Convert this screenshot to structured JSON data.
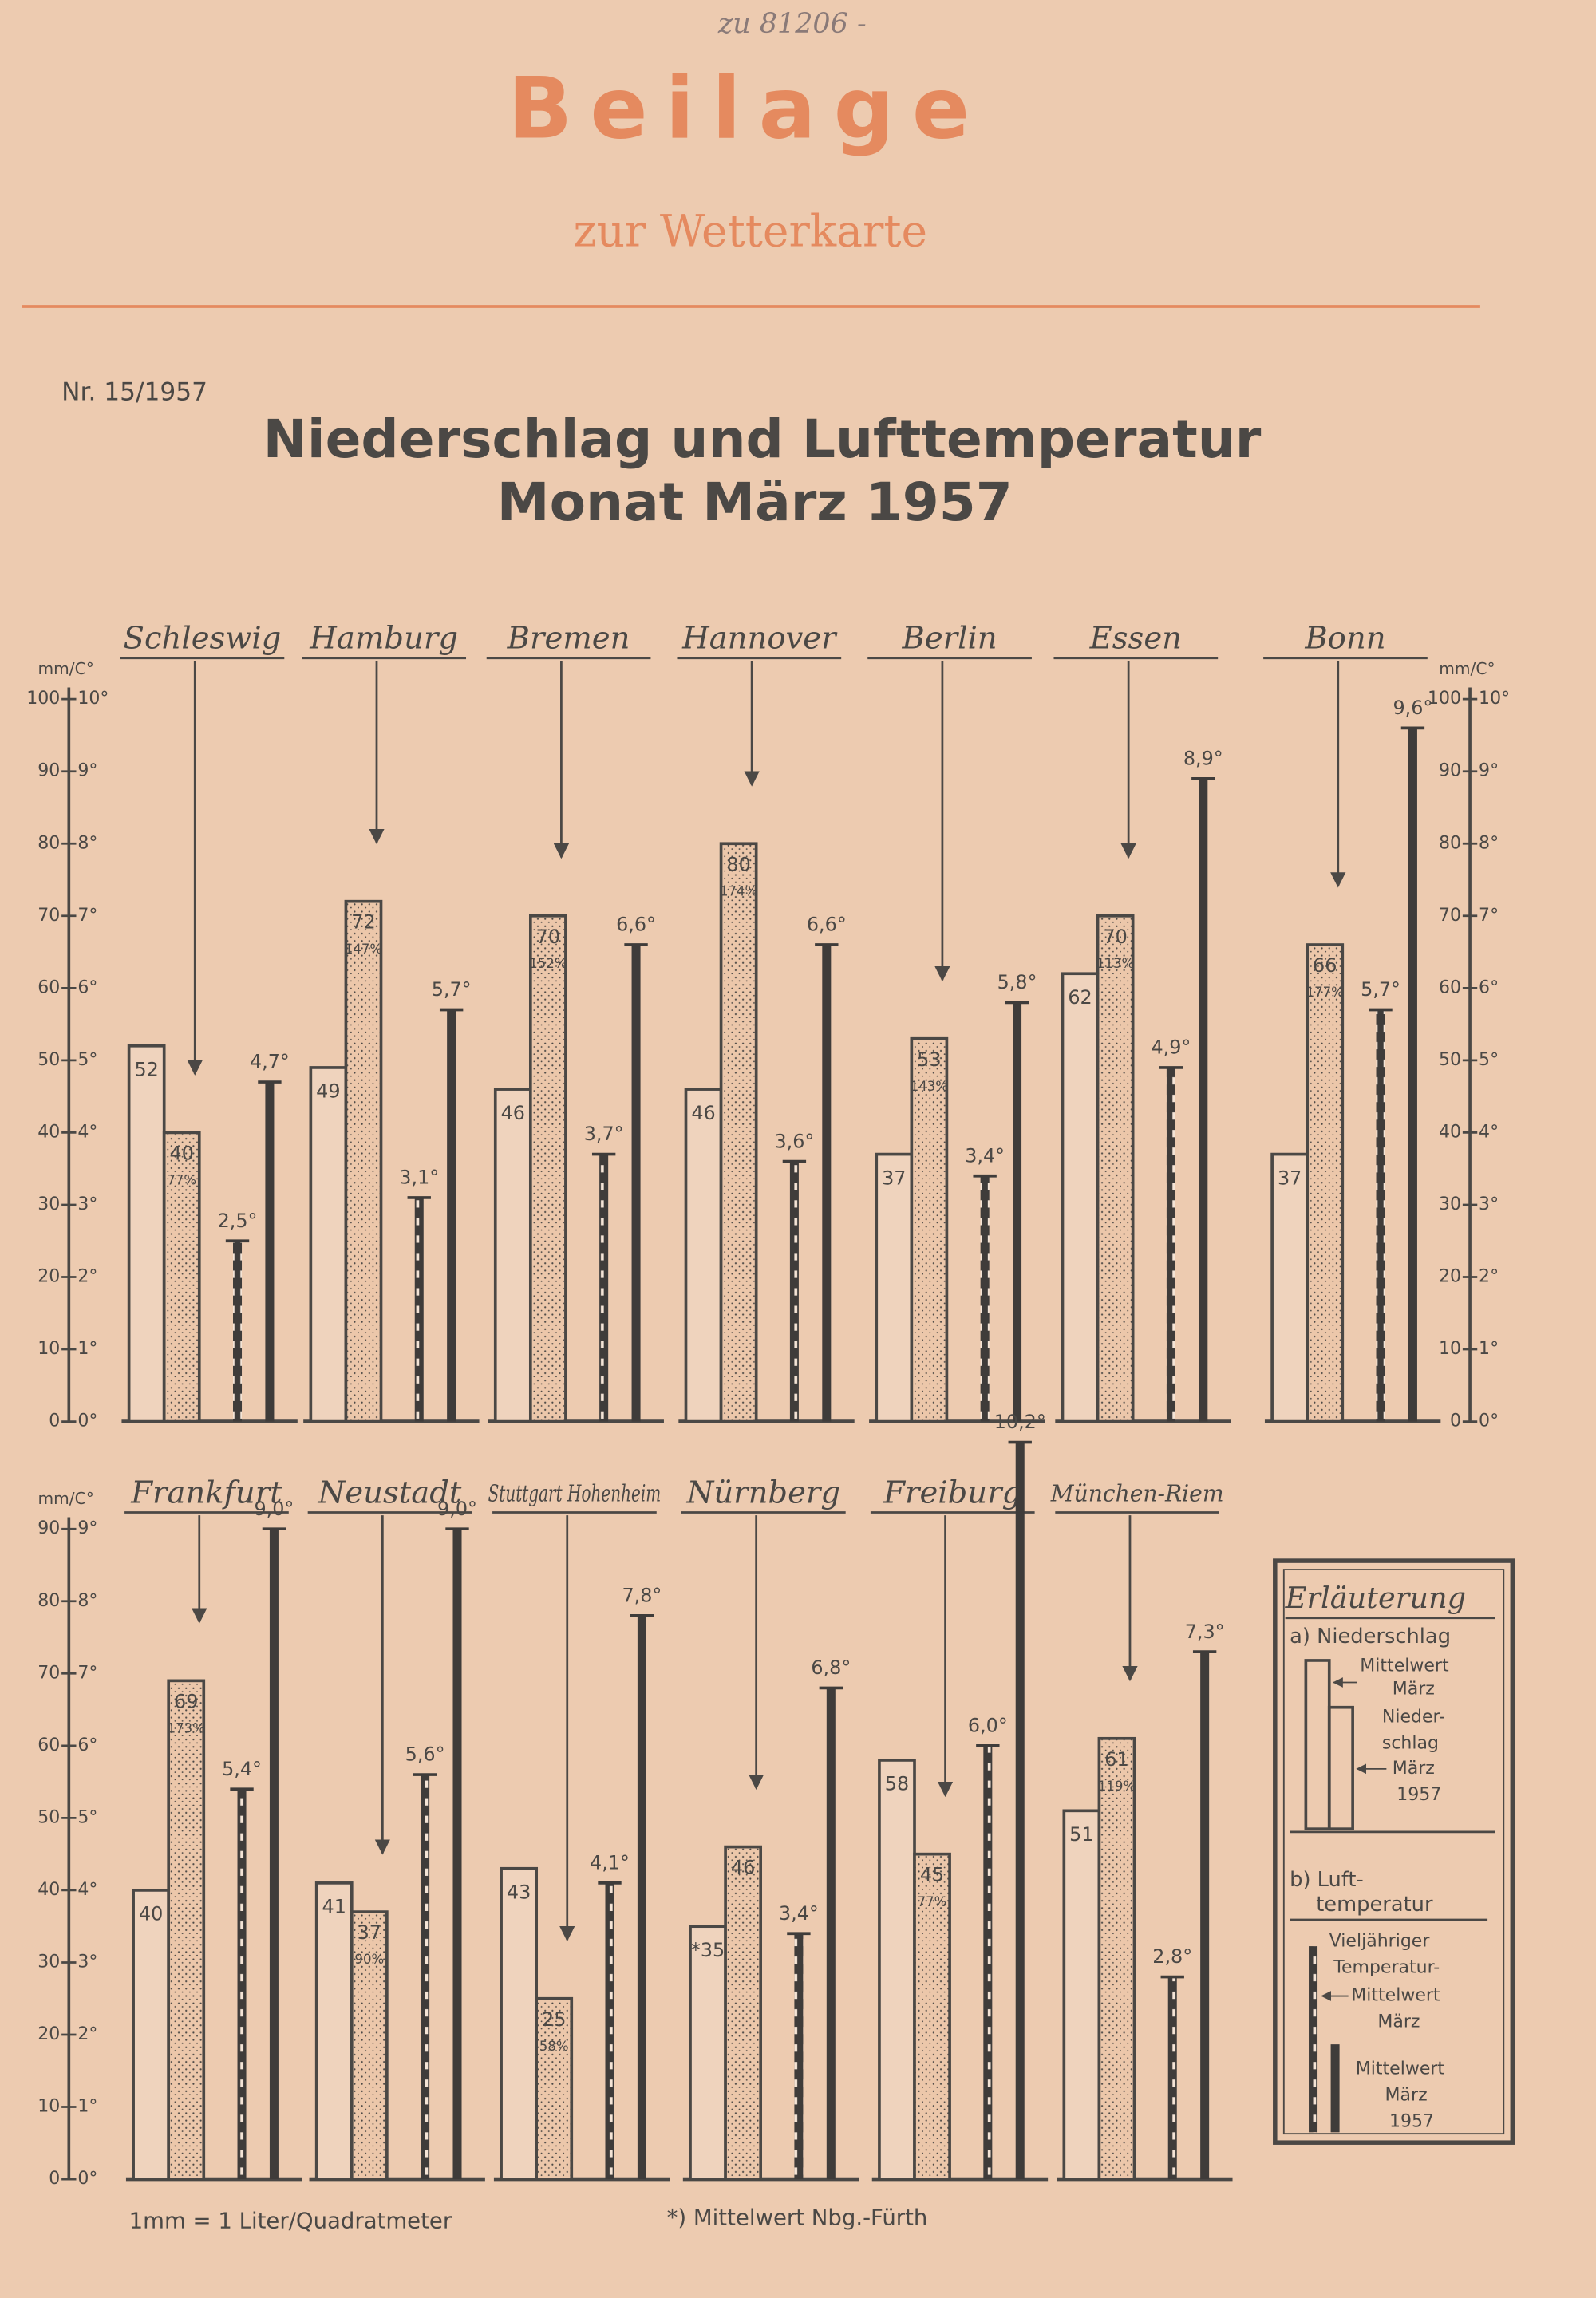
{
  "header": {
    "note": "zu 81206 -",
    "title": "Beilage",
    "subtitle": "zur Wetterkarte",
    "number": "Nr. 15/1957"
  },
  "heading": [
    "Niederschlag und Lufttemperatur",
    "Monat März 1957"
  ],
  "chart_data": [
    {
      "type": "bar",
      "categories": [
        "Schleswig",
        "Hamburg",
        "Bremen",
        "Hannover",
        "Berlin",
        "Essen",
        "Bonn"
      ],
      "ylabel": "mm/C°",
      "ylim": [
        0,
        100
      ],
      "yticks": [
        0,
        10,
        20,
        30,
        40,
        50,
        60,
        70,
        80,
        90,
        100
      ],
      "y2lim": [
        0,
        10
      ],
      "y2ticks": [
        {
          "value": 0,
          "label": "0°"
        },
        {
          "value": 1,
          "label": "1°"
        },
        {
          "value": 2,
          "label": "2°"
        },
        {
          "value": 3,
          "label": "3°"
        },
        {
          "value": 4,
          "label": "4°"
        },
        {
          "value": 5,
          "label": "5°"
        },
        {
          "value": 6,
          "label": "6°"
        },
        {
          "value": 7,
          "label": "7°"
        },
        {
          "value": 8,
          "label": "8°"
        },
        {
          "value": 9,
          "label": "9°"
        },
        {
          "value": 10,
          "label": "10°"
        }
      ],
      "series": [
        {
          "color": "#4b4845",
          "values": [
            52,
            49,
            46,
            46,
            37,
            62,
            37
          ]
        },
        {
          "color": "#4b4845",
          "values": [
            40,
            72,
            70,
            80,
            53,
            70,
            66
          ],
          "percent_labels": [
            "77%",
            "147%",
            "152%",
            "174%",
            "143%",
            "113%",
            "177%"
          ]
        },
        {
          "color": "#3f3c3a",
          "axis": "y2",
          "values": [
            2.5,
            3.1,
            3.7,
            3.6,
            3.4,
            4.9,
            5.7
          ],
          "value_labels": [
            "2,5°",
            "3,1°",
            "3,7°",
            "3,6°",
            "3,4°",
            "4,9°",
            "5,7°"
          ]
        },
        {
          "color": "#3f3c3a",
          "axis": "y2",
          "values": [
            4.7,
            5.7,
            6.6,
            6.6,
            5.8,
            8.9,
            9.6
          ],
          "value_labels": [
            "4,7°",
            "5,7°",
            "6,6°",
            "6,6°",
            "5,8°",
            "8,9°",
            "9,6°"
          ]
        }
      ]
    },
    {
      "type": "bar",
      "categories": [
        "Frankfurt",
        "Neustadt",
        "Stuttgart Hohenheim",
        "Nürnberg",
        "Freiburg",
        "München-Riem"
      ],
      "ylabel": "mm/C°",
      "ylim": [
        0,
        90
      ],
      "yticks": [
        0,
        10,
        20,
        30,
        40,
        50,
        60,
        70,
        80,
        90
      ],
      "y2lim": [
        0,
        9
      ],
      "y2ticks": [
        {
          "value": 0,
          "label": "0°"
        },
        {
          "value": 1,
          "label": "1°"
        },
        {
          "value": 2,
          "label": "2°"
        },
        {
          "value": 3,
          "label": "3°"
        },
        {
          "value": 4,
          "label": "4°"
        },
        {
          "value": 5,
          "label": "5°"
        },
        {
          "value": 6,
          "label": "6°"
        },
        {
          "value": 7,
          "label": "7°"
        },
        {
          "value": 8,
          "label": "8°"
        },
        {
          "value": 9,
          "label": "9°"
        }
      ],
      "series": [
        {
          "color": "#4b4845",
          "values": [
            40,
            41,
            43,
            35,
            58,
            51
          ],
          "value_labels": [
            "40",
            "41",
            "43",
            "*35",
            "58",
            "51"
          ]
        },
        {
          "color": "#4b4845",
          "values": [
            69,
            37,
            25,
            46,
            45,
            61
          ],
          "percent_labels": [
            "173%",
            "90%",
            "58%",
            null,
            "77%",
            "119%"
          ]
        },
        {
          "color": "#3f3c3a",
          "axis": "y2",
          "values": [
            5.4,
            5.6,
            4.1,
            3.4,
            6.0,
            2.8
          ],
          "value_labels": [
            "5,4°",
            "5,6°",
            "4,1°",
            "3,4°",
            "6,0°",
            "2,8°"
          ]
        },
        {
          "color": "#3f3c3a",
          "axis": "y2",
          "values": [
            9.0,
            9.0,
            7.8,
            6.8,
            10.2,
            7.3
          ],
          "value_labels": [
            "9,0°",
            "9,0°",
            "7,8°",
            "6,8°",
            "10,2°",
            "7,3°"
          ]
        }
      ]
    }
  ],
  "legend": {
    "title": "Erläuterung",
    "a": "a) Niederschlag",
    "a_mean": [
      "Mittelwert",
      "März"
    ],
    "a_1957": [
      "Nieder-",
      "schlag",
      "März",
      "1957"
    ],
    "b": [
      "b) Luft-",
      "temperatur"
    ],
    "b_mean": [
      "Vieljähriger",
      "Temperatur-",
      "Mittelwert",
      "März"
    ],
    "b_1957": [
      "Mittelwert",
      "März",
      "1957"
    ]
  },
  "footnotes": [
    "1mm = 1 Liter/Quadratmeter",
    "*) Mittelwert Nbg.-Fürth"
  ]
}
